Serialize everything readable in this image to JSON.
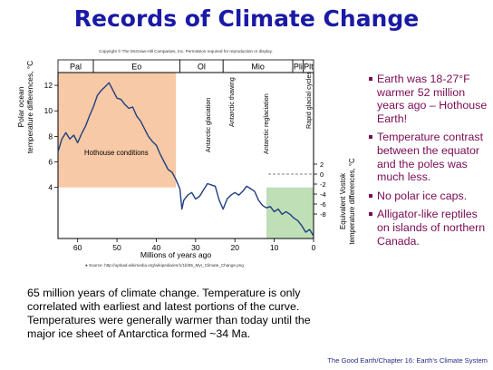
{
  "slide": {
    "title": "Records of Climate Change",
    "bullets": [
      "Earth was 18-27°F warmer 52 million years ago – Hothouse Earth!",
      "Temperature contrast between the equator and the poles was much less.",
      "No polar ice caps.",
      "Alligator-like reptiles on islands of northern Canada."
    ],
    "caption": "65 million years of climate change.  Temperature is only correlated with earliest and latest portions of the curve.  Temperatures were generally warmer than today until the major ice sheet of Antarctica formed ~34 Ma.",
    "footer": "The Good Earth/Chapter 16: Earth's Climate System",
    "colors": {
      "title": "#1a1aa6",
      "bullets": "#7a0a52",
      "hothouse": "#f7c9a6",
      "recent": "#bfdfb7",
      "curve": "#1f3f7f"
    }
  },
  "chart_data": {
    "type": "line",
    "copyright": "Copyright © The McGraw-Hill Companies, Inc. Permission required for reproduction or display.",
    "source": "● Source: http://upload.wikimedia.org/wikipedia/en/1/1b/65_Myr_Climate_Change.png",
    "xlabel": "Millions of years ago",
    "ylabel": "Polar ocean\ntemperature differences, °C",
    "ylabel_right": "Equivalent Vostok\ntemperature differences, °C",
    "xlim": [
      65,
      0
    ],
    "ylim": [
      0,
      13
    ],
    "x_ticks": [
      60,
      50,
      40,
      30,
      20,
      10,
      0
    ],
    "y_ticks": [
      4,
      6,
      8,
      10,
      12
    ],
    "y_ticks_right": [
      2,
      0,
      -2,
      -4,
      -6,
      -8
    ],
    "epochs": [
      {
        "label": "Pal",
        "start": 65,
        "end": 56
      },
      {
        "label": "Eo",
        "start": 56,
        "end": 34
      },
      {
        "label": "Ol",
        "start": 34,
        "end": 23
      },
      {
        "label": "Mio",
        "start": 23,
        "end": 5.3
      },
      {
        "label": "Pli",
        "start": 5.3,
        "end": 2.6
      },
      {
        "label": "Plt",
        "start": 2.6,
        "end": 0
      }
    ],
    "shaded_regions": [
      {
        "label": "Hothouse conditions",
        "x": [
          65,
          35
        ],
        "y": [
          4,
          13
        ]
      },
      {
        "label": "",
        "x": [
          12,
          0
        ],
        "y": [
          0,
          4
        ]
      }
    ],
    "annotations": [
      "Antarctic glaciation",
      "Antarctic thawing",
      "Antarctic reglaciation",
      "Rapid glacial cycles"
    ],
    "x": [
      65,
      64,
      63,
      62,
      61,
      60,
      59,
      58,
      57,
      56,
      55,
      54,
      53,
      52,
      51,
      50,
      49,
      48,
      47,
      46,
      45,
      44,
      43,
      42,
      41,
      40,
      39,
      38,
      37,
      36,
      35,
      34,
      33.5,
      33,
      32,
      31,
      30,
      29,
      28,
      27,
      26,
      25,
      24,
      23,
      22,
      21,
      20,
      19,
      18,
      17,
      16,
      15,
      14,
      13,
      12,
      11,
      10,
      9,
      8,
      7,
      6,
      5,
      4,
      3,
      2,
      1,
      0
    ],
    "y": [
      6.8,
      7.8,
      8.3,
      7.8,
      8.1,
      7.5,
      8.2,
      8.8,
      9.6,
      10.3,
      11.2,
      11.6,
      11.9,
      12.2,
      11.6,
      11.0,
      10.9,
      10.5,
      10.2,
      10.3,
      9.6,
      9.2,
      8.6,
      8.0,
      7.6,
      7.3,
      6.6,
      6.0,
      5.4,
      5.2,
      4.6,
      3.9,
      2.3,
      3.0,
      3.4,
      3.6,
      3.1,
      3.3,
      3.8,
      4.3,
      4.2,
      4.1,
      3.0,
      2.3,
      3.1,
      3.4,
      3.6,
      3.4,
      3.7,
      4.1,
      3.9,
      3.7,
      3.0,
      2.6,
      2.4,
      2.5,
      2.1,
      2.3,
      1.9,
      2.1,
      1.9,
      1.6,
      1.4,
      1.0,
      0.5,
      0.7,
      0.2
    ]
  }
}
